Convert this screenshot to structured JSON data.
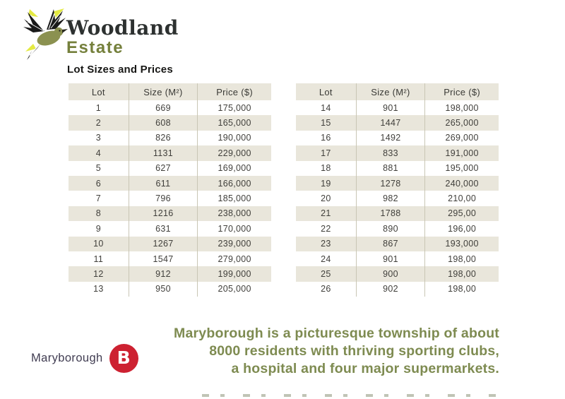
{
  "brand": {
    "name_line1": "Woodland",
    "name_line2": "Estate",
    "bird_icon": "hummingbird-icon"
  },
  "section_title": "Lot Sizes and Prices",
  "tables": {
    "columns": [
      "Lot",
      "Size (M²)",
      "Price ($)"
    ],
    "left_rows": [
      [
        "1",
        "669",
        "175,000"
      ],
      [
        "2",
        "608",
        "165,000"
      ],
      [
        "3",
        "826",
        "190,000"
      ],
      [
        "4",
        "1131",
        "229,000"
      ],
      [
        "5",
        "627",
        "169,000"
      ],
      [
        "6",
        "611",
        "166,000"
      ],
      [
        "7",
        "796",
        "185,000"
      ],
      [
        "8",
        "1216",
        "238,000"
      ],
      [
        "9",
        "631",
        "170,000"
      ],
      [
        "10",
        "1267",
        "239,000"
      ],
      [
        "11",
        "1547",
        "279,000"
      ],
      [
        "12",
        "912",
        "199,000"
      ],
      [
        "13",
        "950",
        "205,000"
      ]
    ],
    "right_rows": [
      [
        "14",
        "901",
        "198,000"
      ],
      [
        "15",
        "1447",
        "265,000"
      ],
      [
        "16",
        "1492",
        "269,000"
      ],
      [
        "17",
        "833",
        "191,000"
      ],
      [
        "18",
        "881",
        "195,000"
      ],
      [
        "19",
        "1278",
        "240,000"
      ],
      [
        "20",
        "982",
        "210,00"
      ],
      [
        "21",
        "1788",
        "295,00"
      ],
      [
        "22",
        "890",
        "196,00"
      ],
      [
        "23",
        "867",
        "193,000"
      ],
      [
        "24",
        "901",
        "198,00"
      ],
      [
        "25",
        "900",
        "198,00"
      ],
      [
        "26",
        "902",
        "198,00"
      ]
    ]
  },
  "footer": {
    "paragraph_line1": "Maryborough is a picturesque township of about",
    "paragraph_line2": "8000 residents with thriving sporting clubs,",
    "paragraph_line3": "a hospital and four major supermarkets.",
    "logo_text": "Maryborough",
    "logo_badge_letter": "B"
  },
  "colors": {
    "estate_green": "#75803c",
    "paragraph_green": "#7e8b51",
    "table_stripe_beige": "#e9e6db",
    "table_divider": "#c9c6b5",
    "badge_red": "#cd2131",
    "logo_navy": "#413d52"
  }
}
